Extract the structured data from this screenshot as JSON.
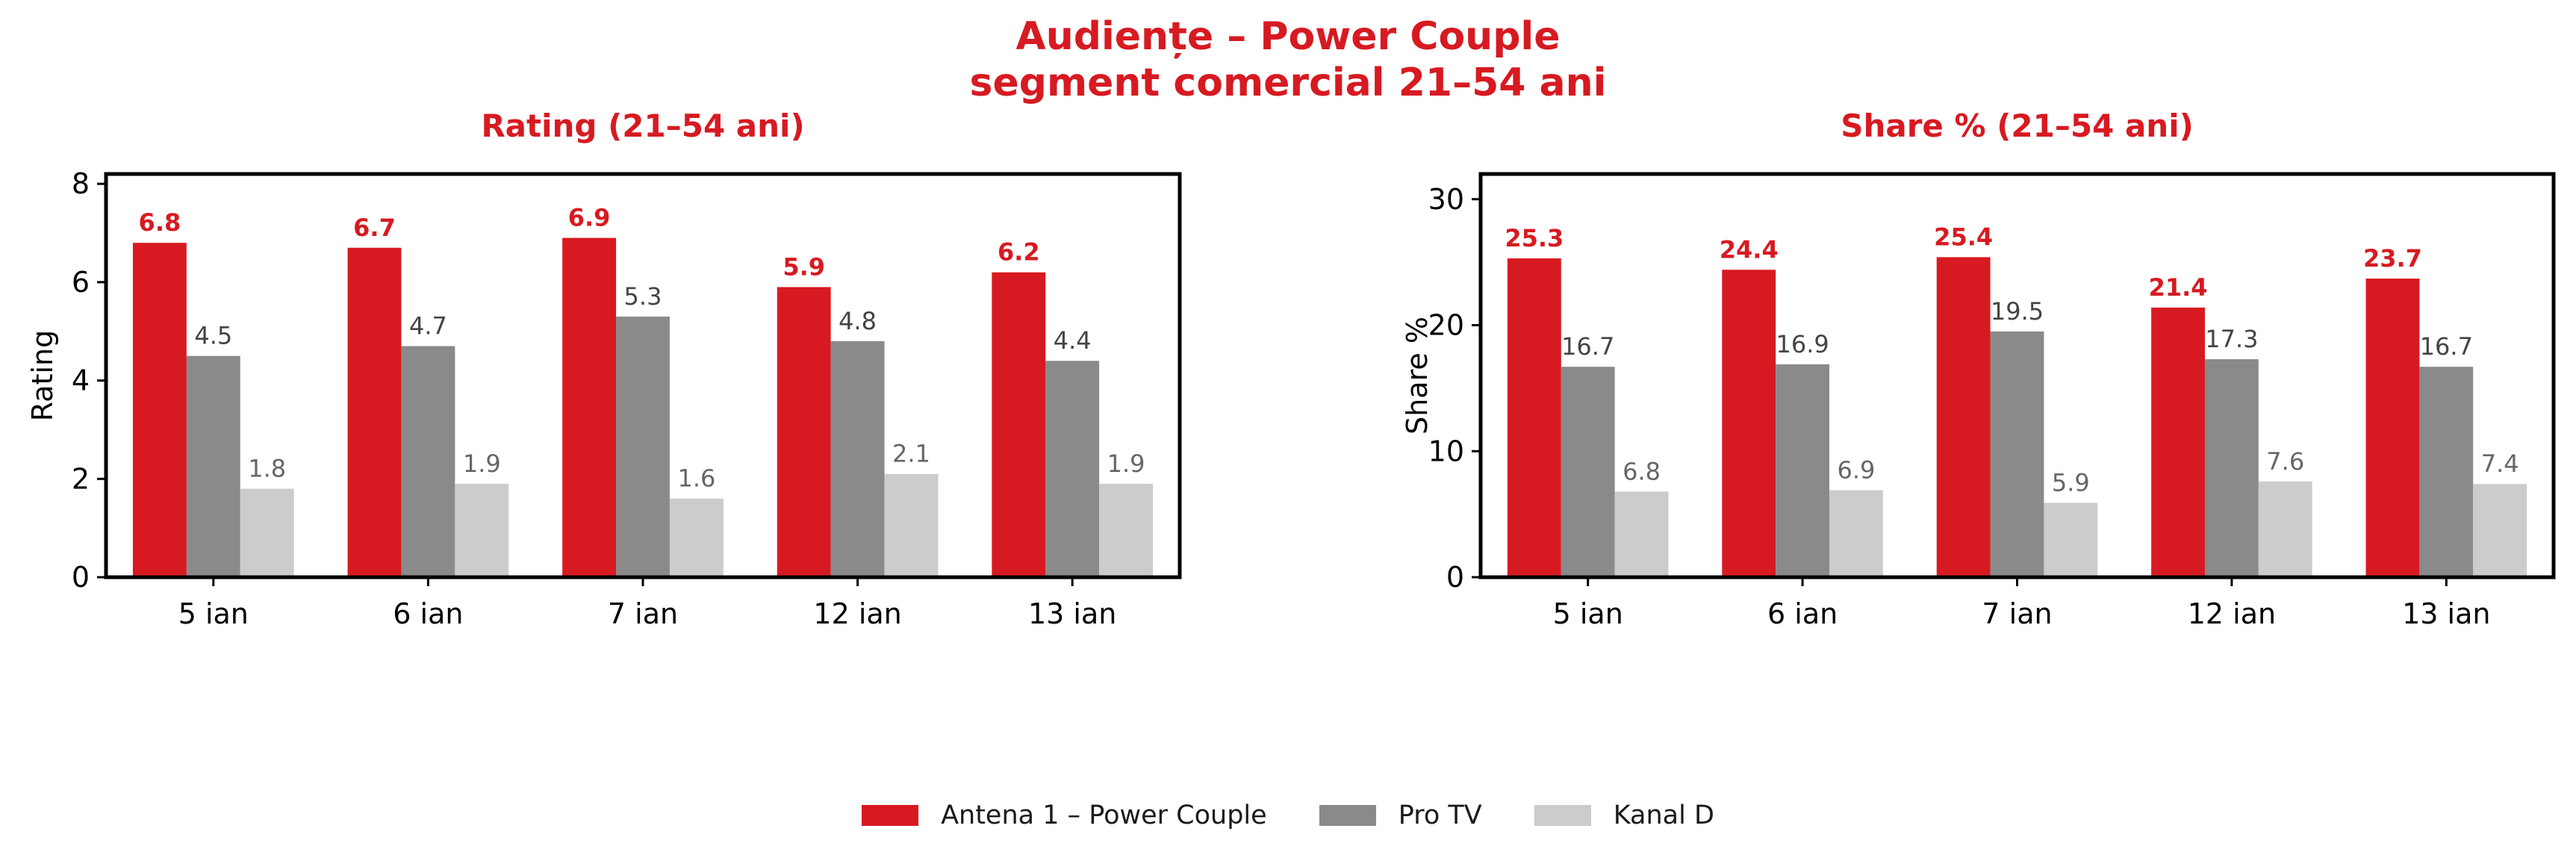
{
  "figure": {
    "title_line1": "Audiențe – Power Couple",
    "title_line2": "segment comercial 21–54 ani"
  },
  "legend": [
    {
      "label": "Antena 1 – Power Couple",
      "color": "#d71a21"
    },
    {
      "label": "Pro TV",
      "color": "#8a8a8a"
    },
    {
      "label": "Kanal D",
      "color": "#cccccc"
    }
  ],
  "chart_data": [
    {
      "type": "bar",
      "title": "Rating (21–54 ani)",
      "xlabel": "",
      "ylabel": "Rating",
      "ylim": [
        0,
        8.2
      ],
      "yticks": [
        0,
        2,
        4,
        6,
        8
      ],
      "categories": [
        "5 ian",
        "6 ian",
        "7 ian",
        "12 ian",
        "13 ian"
      ],
      "series": [
        {
          "name": "Antena 1 – Power Couple",
          "values": [
            6.8,
            6.7,
            6.9,
            5.9,
            6.2
          ],
          "color": "#d71a21"
        },
        {
          "name": "Pro TV",
          "values": [
            4.5,
            4.7,
            5.3,
            4.8,
            4.4
          ],
          "color": "#8a8a8a"
        },
        {
          "name": "Kanal D",
          "values": [
            1.8,
            1.9,
            1.6,
            2.1,
            1.9
          ],
          "color": "#cccccc"
        }
      ],
      "data_labels": [
        [
          "6.8",
          "6.7",
          "6.9",
          "5.9",
          "6.2"
        ],
        [
          "4.5",
          "4.7",
          "5.3",
          "4.8",
          "4.4"
        ],
        [
          "1.8",
          "1.9",
          "1.6",
          "2.1",
          "1.9"
        ]
      ],
      "grid": false,
      "legend_position": "bottom-center"
    },
    {
      "type": "bar",
      "title": "Share % (21–54 ani)",
      "xlabel": "",
      "ylabel": "Share %",
      "ylim": [
        0,
        32
      ],
      "yticks": [
        0,
        10,
        20,
        30
      ],
      "categories": [
        "5 ian",
        "6 ian",
        "7 ian",
        "12 ian",
        "13 ian"
      ],
      "series": [
        {
          "name": "Antena 1 – Power Couple",
          "values": [
            25.3,
            24.4,
            25.4,
            21.4,
            23.7
          ],
          "color": "#d71a21"
        },
        {
          "name": "Pro TV",
          "values": [
            16.7,
            16.9,
            19.5,
            17.3,
            16.7
          ],
          "color": "#8a8a8a"
        },
        {
          "name": "Kanal D",
          "values": [
            6.8,
            6.9,
            5.9,
            7.6,
            7.4
          ],
          "color": "#cccccc"
        }
      ],
      "data_labels": [
        [
          "25.3",
          "24.4",
          "25.4",
          "21.4",
          "23.7"
        ],
        [
          "16.7",
          "16.9",
          "19.5",
          "17.3",
          "16.7"
        ],
        [
          "6.8",
          "6.9",
          "5.9",
          "7.6",
          "7.4"
        ]
      ],
      "grid": false,
      "legend_position": "bottom-center"
    }
  ]
}
